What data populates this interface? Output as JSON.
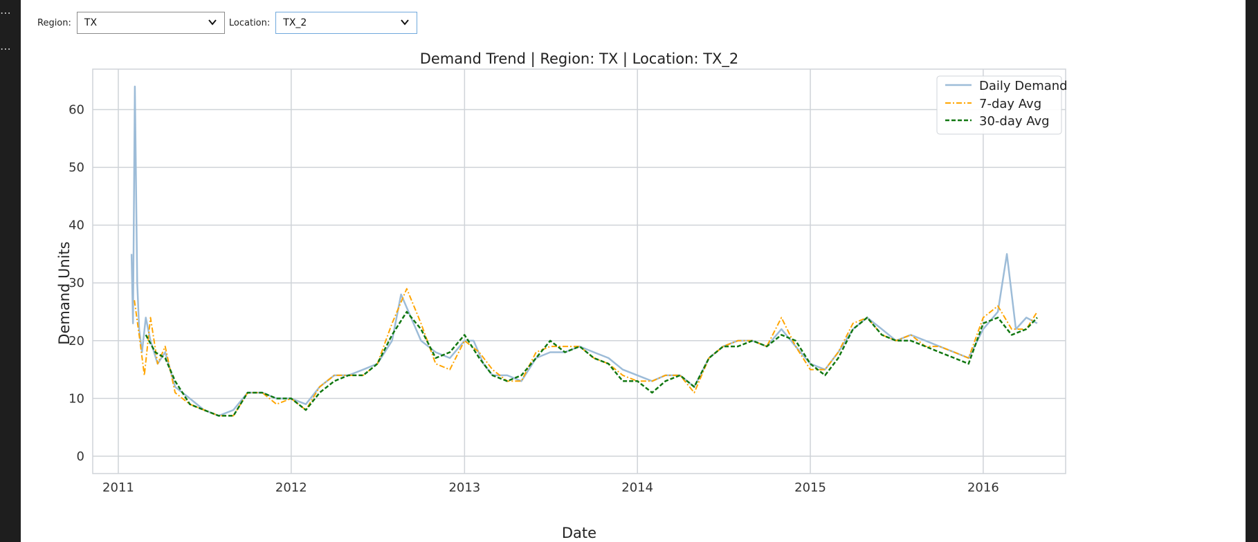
{
  "controls": {
    "region_label": "Region:",
    "region_value": "TX",
    "location_label": "Location:",
    "location_value": "TX_2"
  },
  "colors": {
    "daily": "#9dbcd8",
    "avg7": "#ffa500",
    "avg30": "#117711",
    "grid": "#cfd3d8",
    "frame": "#cfd3d8"
  },
  "chart_data": {
    "type": "line",
    "title": "Demand Trend | Region: TX | Location: TX_2",
    "xlabel": "Date",
    "ylabel": "Demand Units",
    "xlim": [
      "2010-11-08",
      "2016-06-23"
    ],
    "ylim": [
      -3,
      67
    ],
    "grid": true,
    "legend_position": "top-right",
    "x_ticks": [
      "2011",
      "2012",
      "2013",
      "2014",
      "2015",
      "2016"
    ],
    "y_ticks": [
      0,
      10,
      20,
      30,
      40,
      50,
      60
    ],
    "series": [
      {
        "name": "Daily Demand",
        "style": "solid",
        "x": [
          "2011-01-29",
          "2011-02-01",
          "2011-02-05",
          "2011-02-10",
          "2011-02-14",
          "2011-02-20",
          "2011-02-28",
          "2011-03-10",
          "2011-03-25",
          "2011-04-10",
          "2011-05-01",
          "2011-06-01",
          "2011-07-01",
          "2011-08-01",
          "2011-09-01",
          "2011-10-01",
          "2011-11-01",
          "2011-12-01",
          "2012-01-01",
          "2012-02-01",
          "2012-03-01",
          "2012-04-01",
          "2012-05-01",
          "2012-06-01",
          "2012-07-01",
          "2012-08-01",
          "2012-08-20",
          "2012-09-10",
          "2012-10-01",
          "2012-11-01",
          "2012-12-01",
          "2013-01-01",
          "2013-01-20",
          "2013-02-10",
          "2013-03-01",
          "2013-04-01",
          "2013-05-01",
          "2013-06-01",
          "2013-07-01",
          "2013-08-01",
          "2013-09-01",
          "2013-10-01",
          "2013-11-01",
          "2013-12-01",
          "2014-01-01",
          "2014-02-01",
          "2014-03-01",
          "2014-04-01",
          "2014-05-01",
          "2014-06-01",
          "2014-07-01",
          "2014-08-01",
          "2014-09-01",
          "2014-10-01",
          "2014-11-01",
          "2014-12-01",
          "2015-01-01",
          "2015-02-01",
          "2015-03-01",
          "2015-04-01",
          "2015-05-01",
          "2015-06-01",
          "2015-07-01",
          "2015-08-01",
          "2015-09-01",
          "2015-10-01",
          "2015-11-01",
          "2015-12-01",
          "2016-01-01",
          "2016-02-01",
          "2016-02-20",
          "2016-03-10",
          "2016-04-01",
          "2016-04-24"
        ],
        "y": [
          35,
          23,
          64,
          30,
          22,
          18,
          24,
          20,
          16,
          18,
          12,
          10,
          8,
          7,
          8,
          11,
          11,
          10,
          10,
          9,
          12,
          14,
          14,
          15,
          16,
          20,
          28,
          24,
          20,
          18,
          17,
          20,
          20,
          16,
          14,
          14,
          13,
          17,
          18,
          18,
          19,
          18,
          17,
          15,
          14,
          13,
          14,
          14,
          12,
          17,
          19,
          20,
          20,
          19,
          22,
          19,
          16,
          15,
          18,
          22,
          24,
          22,
          20,
          21,
          20,
          19,
          18,
          17,
          22,
          25,
          35,
          22,
          24,
          23
        ]
      },
      {
        "name": "7-day Avg",
        "style": "dashdot",
        "x": [
          "2011-02-04",
          "2011-02-14",
          "2011-02-25",
          "2011-03-10",
          "2011-03-25",
          "2011-04-10",
          "2011-05-01",
          "2011-06-01",
          "2011-07-01",
          "2011-08-01",
          "2011-09-01",
          "2011-10-01",
          "2011-11-01",
          "2011-12-01",
          "2012-01-01",
          "2012-02-01",
          "2012-03-01",
          "2012-04-01",
          "2012-05-01",
          "2012-06-01",
          "2012-07-01",
          "2012-08-01",
          "2012-09-01",
          "2012-10-01",
          "2012-11-01",
          "2012-12-01",
          "2013-01-01",
          "2013-02-01",
          "2013-03-01",
          "2013-04-01",
          "2013-05-01",
          "2013-06-01",
          "2013-07-01",
          "2013-08-01",
          "2013-09-01",
          "2013-10-01",
          "2013-11-01",
          "2013-12-01",
          "2014-01-01",
          "2014-02-01",
          "2014-03-01",
          "2014-04-01",
          "2014-05-01",
          "2014-06-01",
          "2014-07-01",
          "2014-08-01",
          "2014-09-01",
          "2014-10-01",
          "2014-11-01",
          "2014-12-01",
          "2015-01-01",
          "2015-02-01",
          "2015-03-01",
          "2015-04-01",
          "2015-05-01",
          "2015-06-01",
          "2015-07-01",
          "2015-08-01",
          "2015-09-01",
          "2015-10-01",
          "2015-11-01",
          "2015-12-01",
          "2016-01-01",
          "2016-02-01",
          "2016-03-01",
          "2016-04-01",
          "2016-04-24"
        ],
        "y": [
          27,
          21,
          14,
          24,
          16,
          19,
          11,
          9,
          8,
          7,
          7,
          11,
          11,
          9,
          10,
          8,
          12,
          14,
          14,
          14,
          16,
          23,
          29,
          23,
          16,
          15,
          20,
          18,
          15,
          13,
          13,
          18,
          19,
          19,
          19,
          17,
          16,
          14,
          13,
          13,
          14,
          14,
          11,
          17,
          19,
          20,
          20,
          19,
          24,
          19,
          15,
          15,
          18,
          23,
          24,
          21,
          20,
          21,
          19,
          19,
          18,
          17,
          24,
          26,
          22,
          22,
          25
        ]
      },
      {
        "name": "30-day Avg",
        "style": "dashed",
        "x": [
          "2011-02-28",
          "2011-03-20",
          "2011-04-10",
          "2011-05-01",
          "2011-06-01",
          "2011-07-01",
          "2011-08-01",
          "2011-09-01",
          "2011-10-01",
          "2011-11-01",
          "2011-12-01",
          "2012-01-01",
          "2012-02-01",
          "2012-03-01",
          "2012-04-01",
          "2012-05-01",
          "2012-06-01",
          "2012-07-01",
          "2012-08-01",
          "2012-09-01",
          "2012-10-01",
          "2012-11-01",
          "2012-12-01",
          "2013-01-01",
          "2013-02-01",
          "2013-03-01",
          "2013-04-01",
          "2013-05-01",
          "2013-06-01",
          "2013-07-01",
          "2013-08-01",
          "2013-09-01",
          "2013-10-01",
          "2013-11-01",
          "2013-12-01",
          "2014-01-01",
          "2014-02-01",
          "2014-03-01",
          "2014-04-01",
          "2014-05-01",
          "2014-06-01",
          "2014-07-01",
          "2014-08-01",
          "2014-09-01",
          "2014-10-01",
          "2014-11-01",
          "2014-12-01",
          "2015-01-01",
          "2015-02-01",
          "2015-03-01",
          "2015-04-01",
          "2015-05-01",
          "2015-06-01",
          "2015-07-01",
          "2015-08-01",
          "2015-09-01",
          "2015-10-01",
          "2015-11-01",
          "2015-12-01",
          "2016-01-01",
          "2016-02-01",
          "2016-03-01",
          "2016-04-01",
          "2016-04-24"
        ],
        "y": [
          21,
          18,
          17,
          13,
          9,
          8,
          7,
          7,
          11,
          11,
          10,
          10,
          8,
          11,
          13,
          14,
          14,
          16,
          21,
          25,
          22,
          17,
          18,
          21,
          17,
          14,
          13,
          14,
          17,
          20,
          18,
          19,
          17,
          16,
          13,
          13,
          11,
          13,
          14,
          12,
          17,
          19,
          19,
          20,
          19,
          21,
          20,
          16,
          14,
          17,
          22,
          24,
          21,
          20,
          20,
          19,
          18,
          17,
          16,
          23,
          24,
          21,
          22,
          24
        ]
      }
    ]
  }
}
